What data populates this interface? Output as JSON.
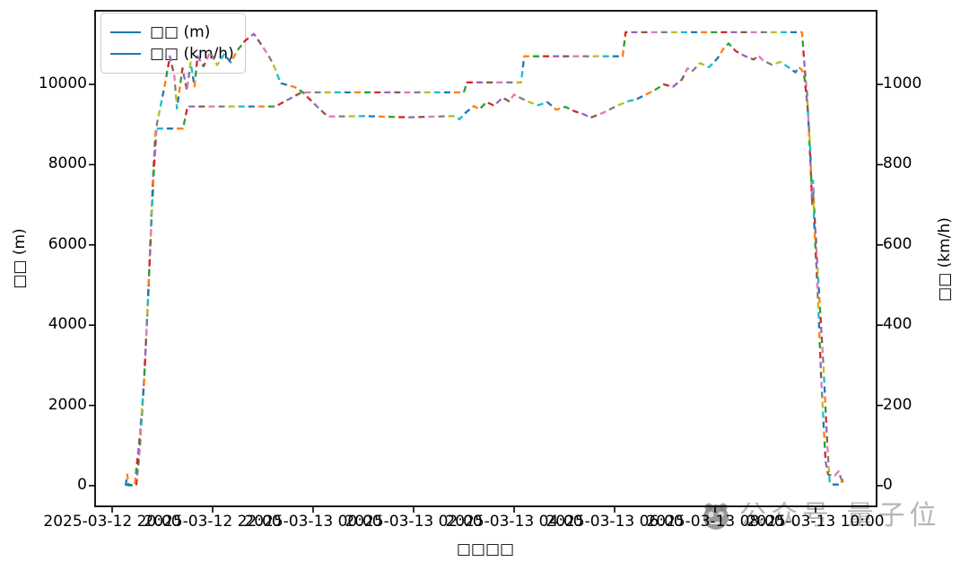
{
  "chart_data": {
    "type": "line",
    "title": "",
    "xlabel": "□□□□",
    "ylabel_left": "□□ (m)",
    "ylabel_right": "□□ (km/h)",
    "x_unit": "hours since 2025-03-12 20:00",
    "x_tick_labels": [
      "2025-03-12 20:00",
      "2025-03-12 22:00",
      "2025-03-13 00:00",
      "2025-03-13 02:00",
      "2025-03-13 04:00",
      "2025-03-13 06:00",
      "2025-03-13 08:00",
      "2025-03-13 10:00"
    ],
    "x_tick_hours": [
      0,
      2,
      4,
      6,
      8,
      10,
      12,
      14
    ],
    "y_left_ticks": [
      0,
      2000,
      4000,
      6000,
      8000,
      10000
    ],
    "y_right_ticks": [
      0,
      200,
      400,
      600,
      800,
      1000
    ],
    "ylim_left": [
      -515,
      11835
    ],
    "ylim_right": [
      -51,
      1184
    ],
    "grid": false,
    "legend_position": "upper-left",
    "legend": [
      {
        "label": "□□ (m)",
        "color": "#1f77b4"
      },
      {
        "label": "□□ (km/h)",
        "color": "#1f77b4"
      }
    ],
    "style": {
      "line_style": "multicolor dashed segments",
      "dash_colors": [
        "#1f77b4",
        "#ff7f0e",
        "#2ca02c",
        "#d62728",
        "#9467bd",
        "#8c564b",
        "#e377c2",
        "#7f7f7f",
        "#bcbd22",
        "#17becf"
      ],
      "frame_color": "#000000",
      "background": "#ffffff"
    },
    "series": [
      {
        "name": "altitude_m",
        "axis": "left",
        "points": [
          [
            0.27,
            0
          ],
          [
            0.3,
            280
          ],
          [
            0.33,
            10
          ],
          [
            0.48,
            10
          ],
          [
            0.55,
            900
          ],
          [
            0.63,
            2500
          ],
          [
            0.71,
            4500
          ],
          [
            0.79,
            7000
          ],
          [
            0.86,
            8900
          ],
          [
            1.41,
            8900
          ],
          [
            1.5,
            9450
          ],
          [
            3.25,
            9450
          ],
          [
            3.77,
            9800
          ],
          [
            7.0,
            9800
          ],
          [
            7.06,
            10050
          ],
          [
            8.14,
            10050
          ],
          [
            8.2,
            10700
          ],
          [
            10.16,
            10700
          ],
          [
            10.22,
            11300
          ],
          [
            13.73,
            11300
          ],
          [
            13.79,
            10300
          ],
          [
            13.83,
            9800
          ],
          [
            13.88,
            8500
          ],
          [
            13.93,
            7200
          ],
          [
            13.95,
            7600
          ],
          [
            13.98,
            6700
          ],
          [
            14.07,
            4800
          ],
          [
            14.16,
            2900
          ],
          [
            14.23,
            1100
          ],
          [
            14.28,
            100
          ],
          [
            14.32,
            30
          ],
          [
            14.5,
            30
          ],
          [
            14.53,
            150
          ],
          [
            14.57,
            10
          ]
        ]
      },
      {
        "name": "speed_kmh",
        "axis": "right",
        "points": [
          [
            0.27,
            2
          ],
          [
            0.45,
            2
          ],
          [
            0.54,
            110
          ],
          [
            0.63,
            250
          ],
          [
            0.68,
            380
          ],
          [
            0.73,
            515
          ],
          [
            0.78,
            650
          ],
          [
            0.83,
            785
          ],
          [
            0.89,
            900
          ],
          [
            0.96,
            945
          ],
          [
            1.05,
            1000
          ],
          [
            1.15,
            1070
          ],
          [
            1.24,
            1020
          ],
          [
            1.29,
            940
          ],
          [
            1.4,
            1040
          ],
          [
            1.49,
            985
          ],
          [
            1.56,
            1055
          ],
          [
            1.64,
            995
          ],
          [
            1.7,
            1070
          ],
          [
            1.82,
            1045
          ],
          [
            1.95,
            1080
          ],
          [
            2.09,
            1048
          ],
          [
            2.23,
            1075
          ],
          [
            2.36,
            1055
          ],
          [
            2.5,
            1086
          ],
          [
            2.64,
            1108
          ],
          [
            2.82,
            1126
          ],
          [
            2.98,
            1097
          ],
          [
            3.13,
            1068
          ],
          [
            3.22,
            1046
          ],
          [
            3.29,
            1023
          ],
          [
            3.36,
            1003
          ],
          [
            3.5,
            998
          ],
          [
            3.64,
            993
          ],
          [
            3.79,
            981
          ],
          [
            4.02,
            952
          ],
          [
            4.29,
            920
          ],
          [
            5.0,
            921
          ],
          [
            5.9,
            918
          ],
          [
            6.79,
            921
          ],
          [
            6.91,
            913
          ],
          [
            7.05,
            931
          ],
          [
            7.2,
            946
          ],
          [
            7.31,
            938
          ],
          [
            7.45,
            956
          ],
          [
            7.6,
            947
          ],
          [
            7.77,
            967
          ],
          [
            7.9,
            958
          ],
          [
            8.0,
            975
          ],
          [
            8.13,
            966
          ],
          [
            8.3,
            956
          ],
          [
            8.48,
            948
          ],
          [
            8.66,
            956
          ],
          [
            8.84,
            937
          ],
          [
            9.02,
            944
          ],
          [
            9.2,
            933
          ],
          [
            9.38,
            926
          ],
          [
            9.52,
            917
          ],
          [
            9.77,
            929
          ],
          [
            10.05,
            947
          ],
          [
            10.27,
            958
          ],
          [
            10.45,
            964
          ],
          [
            10.63,
            975
          ],
          [
            10.8,
            986
          ],
          [
            10.98,
            1000
          ],
          [
            11.16,
            994
          ],
          [
            11.34,
            1012
          ],
          [
            11.45,
            1040
          ],
          [
            11.54,
            1032
          ],
          [
            11.7,
            1053
          ],
          [
            11.88,
            1043
          ],
          [
            12.05,
            1065
          ],
          [
            12.16,
            1088
          ],
          [
            12.27,
            1102
          ],
          [
            12.41,
            1083
          ],
          [
            12.59,
            1071
          ],
          [
            12.77,
            1062
          ],
          [
            12.86,
            1072
          ],
          [
            12.95,
            1060
          ],
          [
            13.13,
            1049
          ],
          [
            13.3,
            1056
          ],
          [
            13.48,
            1041
          ],
          [
            13.6,
            1030
          ],
          [
            13.66,
            1043
          ],
          [
            13.73,
            1036
          ],
          [
            13.78,
            1015
          ],
          [
            13.84,
            946
          ],
          [
            13.89,
            855
          ],
          [
            13.93,
            700
          ],
          [
            13.95,
            740
          ],
          [
            13.97,
            660
          ],
          [
            14.02,
            540
          ],
          [
            14.07,
            400
          ],
          [
            14.11,
            270
          ],
          [
            14.16,
            150
          ],
          [
            14.2,
            60
          ],
          [
            14.25,
            28
          ],
          [
            14.38,
            25
          ],
          [
            14.46,
            36
          ],
          [
            14.5,
            20
          ],
          [
            14.57,
            5
          ]
        ]
      }
    ]
  },
  "watermark": {
    "icon": "qbitai-panda-logo",
    "text": "公众号 量子位"
  }
}
